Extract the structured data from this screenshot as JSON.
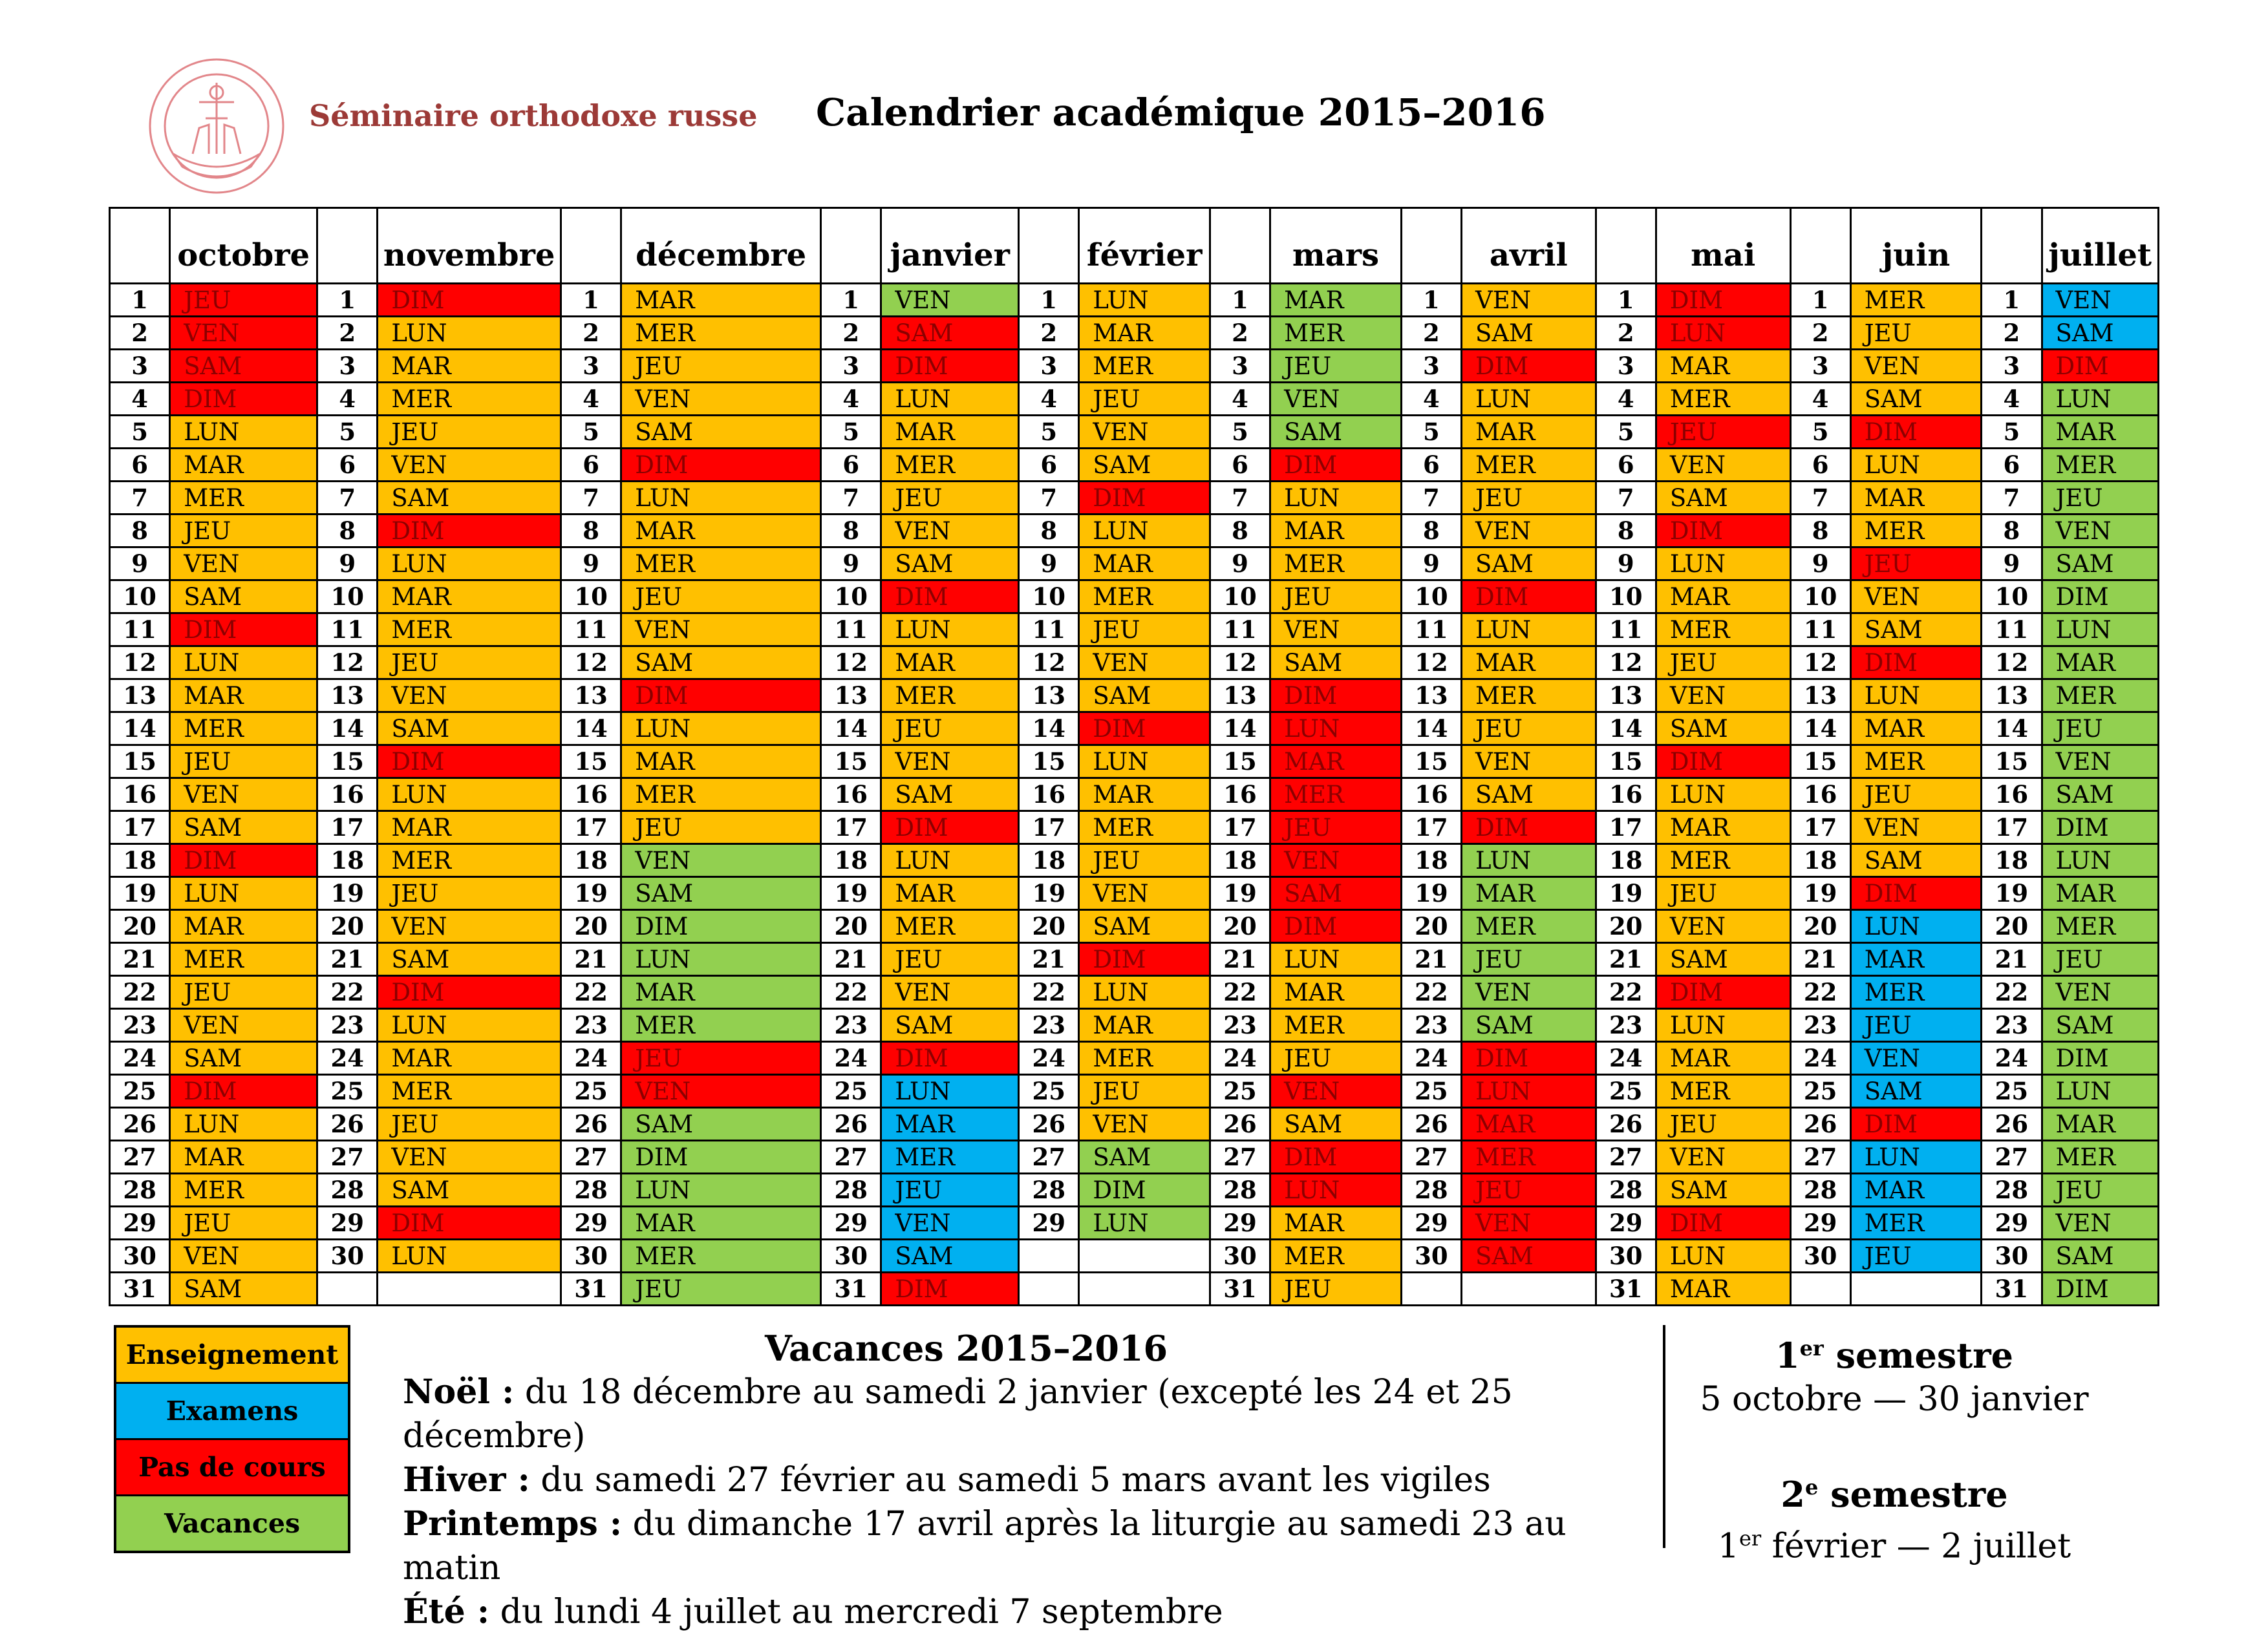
{
  "header": {
    "seminary_name": "Séminaire orthodoxe russe",
    "title": "Calendrier académique 2015–2016",
    "logo_icon": "seminary-seal-icon",
    "logo_color": "#e2868a"
  },
  "colors": {
    "E": "#ffc000",
    "X": "#00b0f0",
    "P": "#ff0000",
    "V": "#92d050"
  },
  "months": [
    {
      "name": "octobre",
      "days": [
        "JEU",
        "VEN",
        "SAM",
        "DIM",
        "LUN",
        "MAR",
        "MER",
        "JEU",
        "VEN",
        "SAM",
        "DIM",
        "LUN",
        "MAR",
        "MER",
        "JEU",
        "VEN",
        "SAM",
        "DIM",
        "LUN",
        "MAR",
        "MER",
        "JEU",
        "VEN",
        "SAM",
        "DIM",
        "LUN",
        "MAR",
        "MER",
        "JEU",
        "VEN",
        "SAM"
      ],
      "colors": [
        "P",
        "P",
        "P",
        "P",
        "E",
        "E",
        "E",
        "E",
        "E",
        "E",
        "P",
        "E",
        "E",
        "E",
        "E",
        "E",
        "E",
        "P",
        "E",
        "E",
        "E",
        "E",
        "E",
        "E",
        "P",
        "E",
        "E",
        "E",
        "E",
        "E",
        "E"
      ]
    },
    {
      "name": "novembre",
      "days": [
        "DIM",
        "LUN",
        "MAR",
        "MER",
        "JEU",
        "VEN",
        "SAM",
        "DIM",
        "LUN",
        "MAR",
        "MER",
        "JEU",
        "VEN",
        "SAM",
        "DIM",
        "LUN",
        "MAR",
        "MER",
        "JEU",
        "VEN",
        "SAM",
        "DIM",
        "LUN",
        "MAR",
        "MER",
        "JEU",
        "VEN",
        "SAM",
        "DIM",
        "LUN"
      ],
      "colors": [
        "P",
        "E",
        "E",
        "E",
        "E",
        "E",
        "E",
        "P",
        "E",
        "E",
        "E",
        "E",
        "E",
        "E",
        "P",
        "E",
        "E",
        "E",
        "E",
        "E",
        "E",
        "P",
        "E",
        "E",
        "E",
        "E",
        "E",
        "E",
        "P",
        "E"
      ]
    },
    {
      "name": "décembre",
      "days": [
        "MAR",
        "MER",
        "JEU",
        "VEN",
        "SAM",
        "DIM",
        "LUN",
        "MAR",
        "MER",
        "JEU",
        "VEN",
        "SAM",
        "DIM",
        "LUN",
        "MAR",
        "MER",
        "JEU",
        "VEN",
        "SAM",
        "DIM",
        "LUN",
        "MAR",
        "MER",
        "JEU",
        "VEN",
        "SAM",
        "DIM",
        "LUN",
        "MAR",
        "MER",
        "JEU"
      ],
      "colors": [
        "E",
        "E",
        "E",
        "E",
        "E",
        "P",
        "E",
        "E",
        "E",
        "E",
        "E",
        "E",
        "P",
        "E",
        "E",
        "E",
        "E",
        "V",
        "V",
        "V",
        "V",
        "V",
        "V",
        "P",
        "P",
        "V",
        "V",
        "V",
        "V",
        "V",
        "V"
      ]
    },
    {
      "name": "janvier",
      "days": [
        "VEN",
        "SAM",
        "DIM",
        "LUN",
        "MAR",
        "MER",
        "JEU",
        "VEN",
        "SAM",
        "DIM",
        "LUN",
        "MAR",
        "MER",
        "JEU",
        "VEN",
        "SAM",
        "DIM",
        "LUN",
        "MAR",
        "MER",
        "JEU",
        "VEN",
        "SAM",
        "DIM",
        "LUN",
        "MAR",
        "MER",
        "JEU",
        "VEN",
        "SAM",
        "DIM"
      ],
      "colors": [
        "V",
        "P",
        "P",
        "E",
        "E",
        "E",
        "E",
        "E",
        "E",
        "P",
        "E",
        "E",
        "E",
        "E",
        "E",
        "E",
        "P",
        "E",
        "E",
        "E",
        "E",
        "E",
        "E",
        "P",
        "X",
        "X",
        "X",
        "X",
        "X",
        "X",
        "P"
      ]
    },
    {
      "name": "février",
      "days": [
        "LUN",
        "MAR",
        "MER",
        "JEU",
        "VEN",
        "SAM",
        "DIM",
        "LUN",
        "MAR",
        "MER",
        "JEU",
        "VEN",
        "SAM",
        "DIM",
        "LUN",
        "MAR",
        "MER",
        "JEU",
        "VEN",
        "SAM",
        "DIM",
        "LUN",
        "MAR",
        "MER",
        "JEU",
        "VEN",
        "SAM",
        "DIM",
        "LUN"
      ],
      "colors": [
        "E",
        "E",
        "E",
        "E",
        "E",
        "E",
        "P",
        "E",
        "E",
        "E",
        "E",
        "E",
        "E",
        "P",
        "E",
        "E",
        "E",
        "E",
        "E",
        "E",
        "P",
        "E",
        "E",
        "E",
        "E",
        "E",
        "V",
        "V",
        "V"
      ]
    },
    {
      "name": "mars",
      "days": [
        "MAR",
        "MER",
        "JEU",
        "VEN",
        "SAM",
        "DIM",
        "LUN",
        "MAR",
        "MER",
        "JEU",
        "VEN",
        "SAM",
        "DIM",
        "LUN",
        "MAR",
        "MER",
        "JEU",
        "VEN",
        "SAM",
        "DIM",
        "LUN",
        "MAR",
        "MER",
        "JEU",
        "VEN",
        "SAM",
        "DIM",
        "LUN",
        "MAR",
        "MER",
        "JEU"
      ],
      "colors": [
        "V",
        "V",
        "V",
        "V",
        "V",
        "P",
        "E",
        "E",
        "E",
        "E",
        "E",
        "E",
        "P",
        "P",
        "P",
        "P",
        "P",
        "P",
        "P",
        "P",
        "E",
        "E",
        "E",
        "E",
        "P",
        "E",
        "P",
        "P",
        "E",
        "E",
        "E"
      ]
    },
    {
      "name": "avril",
      "days": [
        "VEN",
        "SAM",
        "DIM",
        "LUN",
        "MAR",
        "MER",
        "JEU",
        "VEN",
        "SAM",
        "DIM",
        "LUN",
        "MAR",
        "MER",
        "JEU",
        "VEN",
        "SAM",
        "DIM",
        "LUN",
        "MAR",
        "MER",
        "JEU",
        "VEN",
        "SAM",
        "DIM",
        "LUN",
        "MAR",
        "MER",
        "JEU",
        "VEN",
        "SAM"
      ],
      "colors": [
        "E",
        "E",
        "P",
        "E",
        "E",
        "E",
        "E",
        "E",
        "E",
        "P",
        "E",
        "E",
        "E",
        "E",
        "E",
        "E",
        "P",
        "V",
        "V",
        "V",
        "V",
        "V",
        "V",
        "P",
        "P",
        "P",
        "P",
        "P",
        "P",
        "P"
      ]
    },
    {
      "name": "mai",
      "days": [
        "DIM",
        "LUN",
        "MAR",
        "MER",
        "JEU",
        "VEN",
        "SAM",
        "DIM",
        "LUN",
        "MAR",
        "MER",
        "JEU",
        "VEN",
        "SAM",
        "DIM",
        "LUN",
        "MAR",
        "MER",
        "JEU",
        "VEN",
        "SAM",
        "DIM",
        "LUN",
        "MAR",
        "MER",
        "JEU",
        "VEN",
        "SAM",
        "DIM",
        "LUN",
        "MAR"
      ],
      "colors": [
        "P",
        "P",
        "E",
        "E",
        "P",
        "E",
        "E",
        "P",
        "E",
        "E",
        "E",
        "E",
        "E",
        "E",
        "P",
        "E",
        "E",
        "E",
        "E",
        "E",
        "E",
        "P",
        "E",
        "E",
        "E",
        "E",
        "E",
        "E",
        "P",
        "E",
        "E"
      ]
    },
    {
      "name": "juin",
      "days": [
        "MER",
        "JEU",
        "VEN",
        "SAM",
        "DIM",
        "LUN",
        "MAR",
        "MER",
        "JEU",
        "VEN",
        "SAM",
        "DIM",
        "LUN",
        "MAR",
        "MER",
        "JEU",
        "VEN",
        "SAM",
        "DIM",
        "LUN",
        "MAR",
        "MER",
        "JEU",
        "VEN",
        "SAM",
        "DIM",
        "LUN",
        "MAR",
        "MER",
        "JEU"
      ],
      "colors": [
        "E",
        "E",
        "E",
        "E",
        "P",
        "E",
        "E",
        "E",
        "P",
        "E",
        "E",
        "P",
        "E",
        "E",
        "E",
        "E",
        "E",
        "E",
        "P",
        "X",
        "X",
        "X",
        "X",
        "X",
        "X",
        "P",
        "X",
        "X",
        "X",
        "X"
      ]
    },
    {
      "name": "juillet",
      "days": [
        "VEN",
        "SAM",
        "DIM",
        "LUN",
        "MAR",
        "MER",
        "JEU",
        "VEN",
        "SAM",
        "DIM",
        "LUN",
        "MAR",
        "MER",
        "JEU",
        "VEN",
        "SAM",
        "DIM",
        "LUN",
        "MAR",
        "MER",
        "JEU",
        "VEN",
        "SAM",
        "DIM",
        "LUN",
        "MAR",
        "MER",
        "JEU",
        "VEN",
        "SAM",
        "DIM"
      ],
      "colors": [
        "X",
        "X",
        "P",
        "V",
        "V",
        "V",
        "V",
        "V",
        "V",
        "V",
        "V",
        "V",
        "V",
        "V",
        "V",
        "V",
        "V",
        "V",
        "V",
        "V",
        "V",
        "V",
        "V",
        "V",
        "V",
        "V",
        "V",
        "V",
        "V",
        "V",
        "V"
      ]
    }
  ],
  "legend": [
    {
      "label": "Enseignement",
      "key": "E"
    },
    {
      "label": "Examens",
      "key": "X"
    },
    {
      "label": "Pas de cours",
      "key": "P"
    },
    {
      "label": "Vacances",
      "key": "V"
    }
  ],
  "vacances": {
    "title": "Vacances 2015–2016",
    "items": [
      {
        "label": "Noël :",
        "text": "du 18 décembre au samedi 2 janvier (excepté les 24 et 25 décembre)"
      },
      {
        "label": "Hiver :",
        "text": "du samedi 27 février au samedi 5 mars avant les vigiles"
      },
      {
        "label": "Printemps :",
        "text": "du dimanche 17 avril après la liturgie au samedi 23 au matin"
      },
      {
        "label": "Été :",
        "text": "du lundi 4 juillet au mercredi 7 septembre"
      }
    ]
  },
  "semesters": {
    "first": {
      "num": "1",
      "sup": "er",
      "word": "semestre",
      "range": "5 octobre — 30 janvier"
    },
    "second": {
      "num": "2",
      "sup": "e",
      "word": "semestre",
      "range_num": "1",
      "range_sup": "er",
      "range_rest": "février — 2 juillet"
    }
  }
}
